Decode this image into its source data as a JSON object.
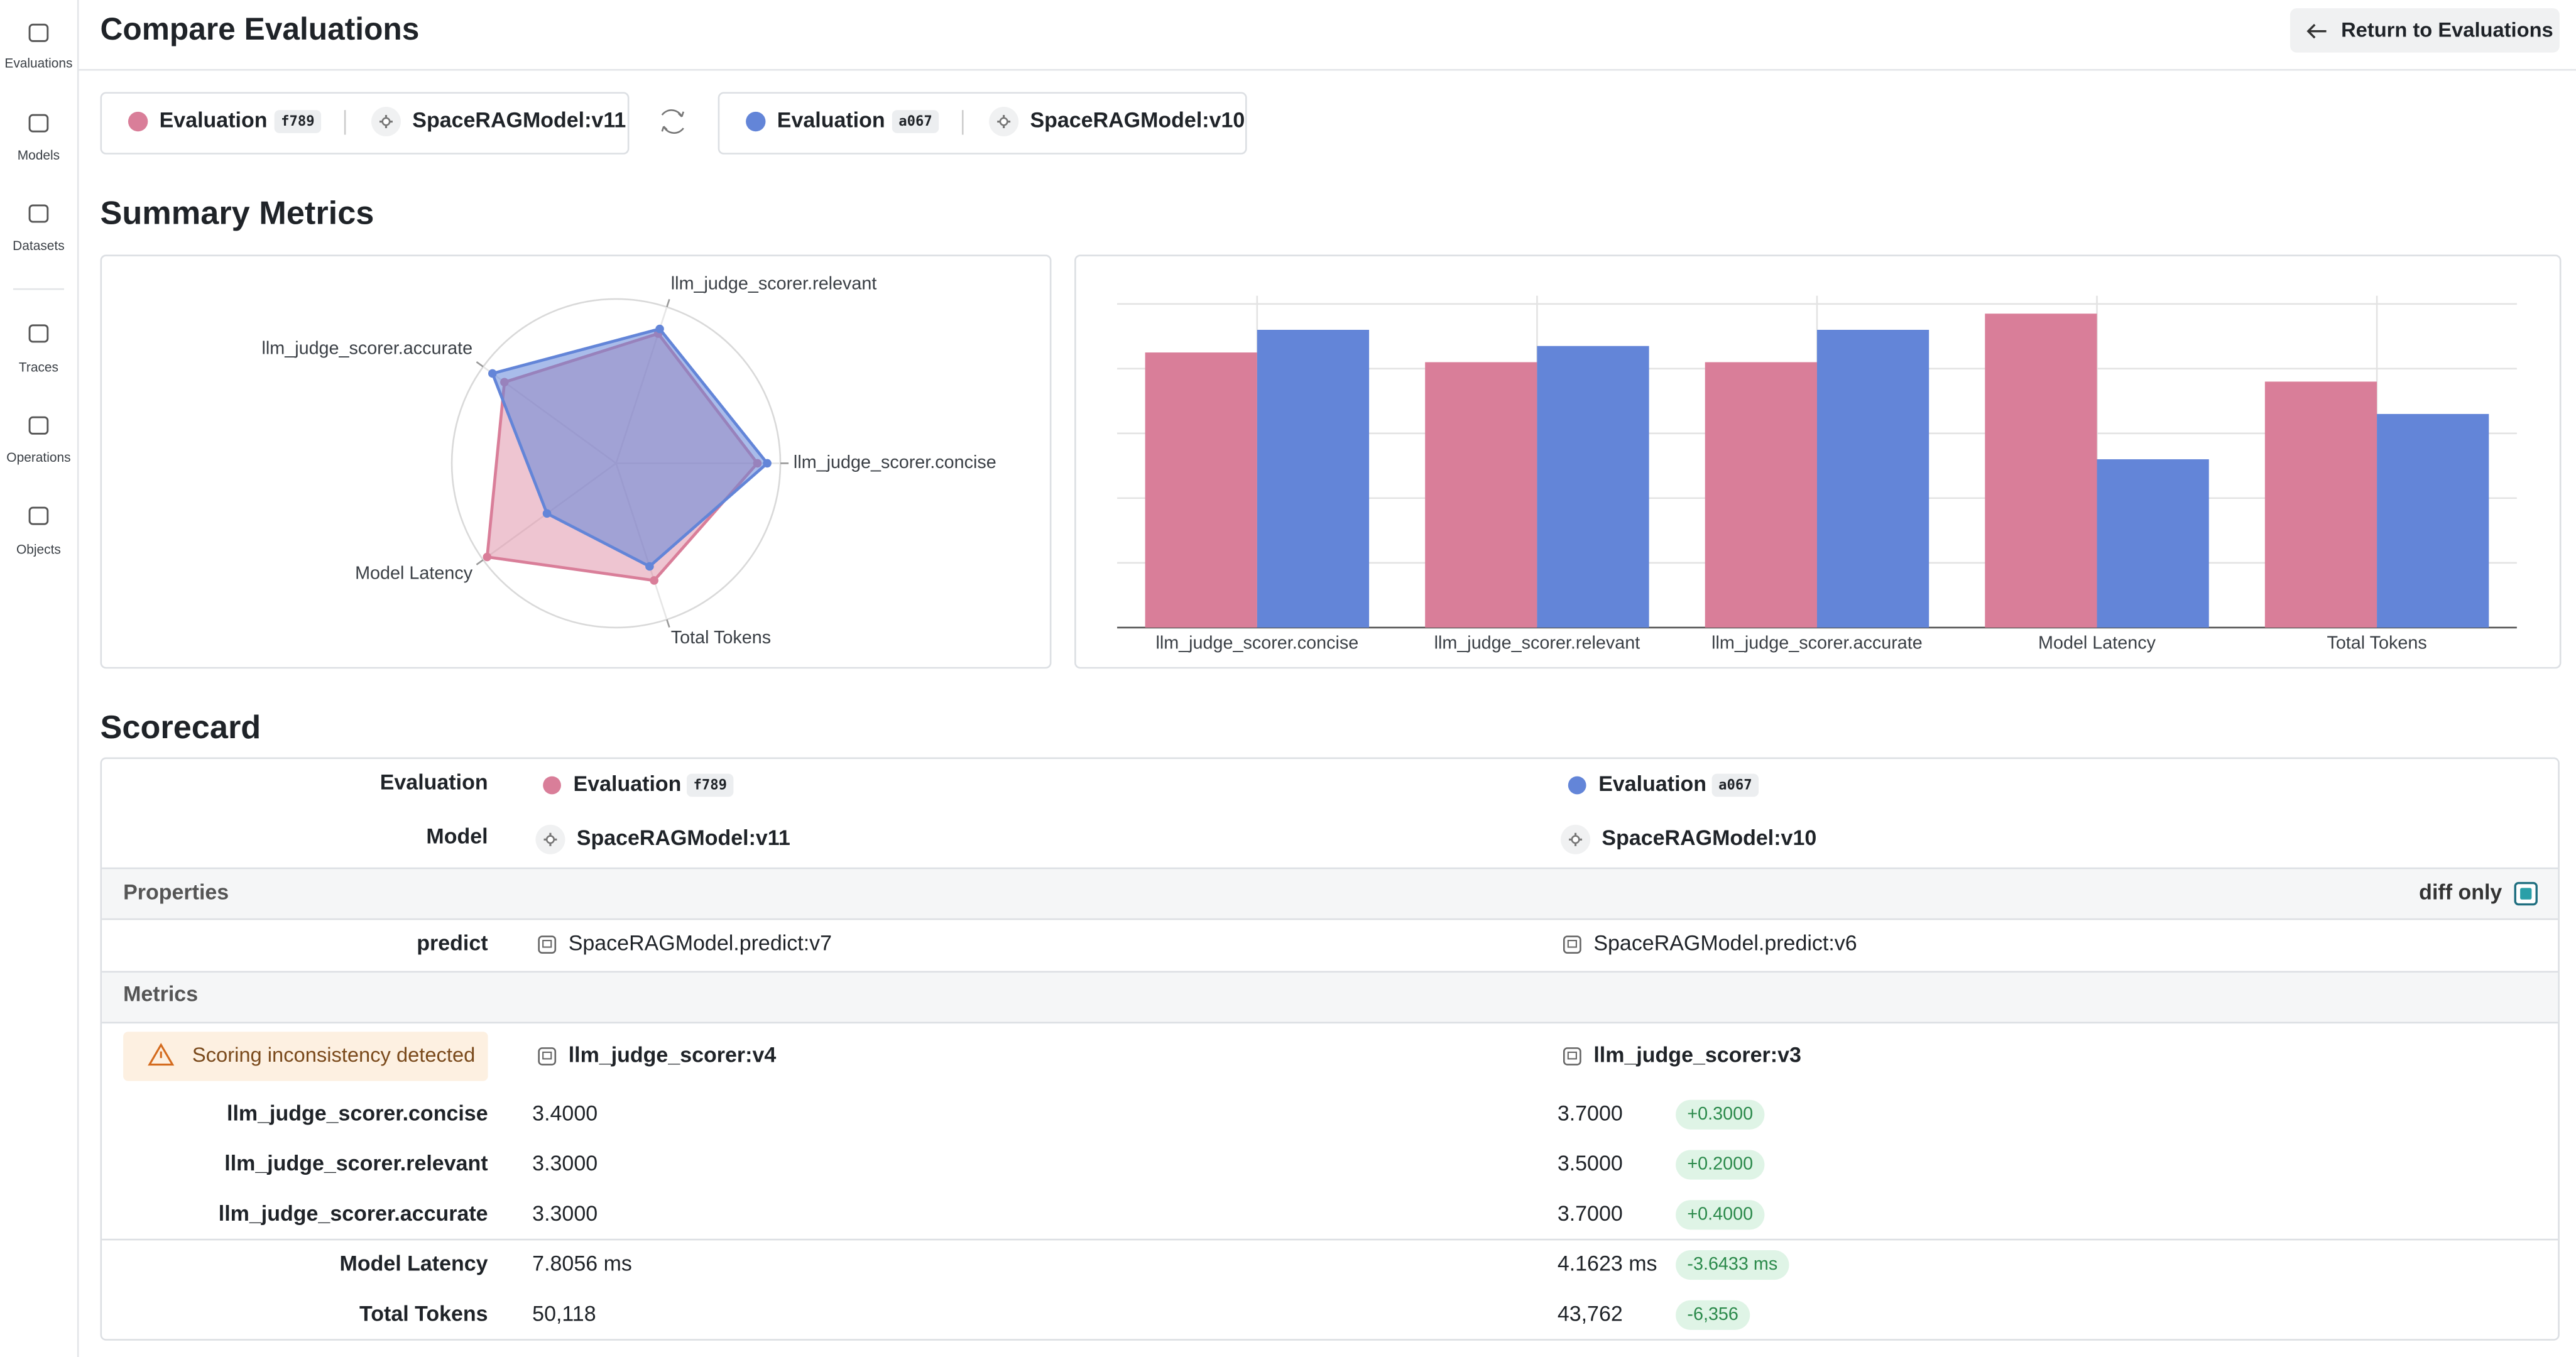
{
  "sidebar": {
    "items": [
      "Evaluations",
      "Models",
      "Datasets",
      "Traces",
      "Operations",
      "Objects"
    ]
  },
  "header": {
    "title": "Compare Evaluations",
    "return_button": "Return to Evaluations"
  },
  "evaluations": [
    {
      "label": "Evaluation",
      "id": "f789",
      "model": "SpaceRAGModel:v11",
      "color": "#d97e99"
    },
    {
      "label": "Evaluation",
      "id": "a067",
      "model": "SpaceRAGModel:v10",
      "color": "#6385d8"
    }
  ],
  "summary_title": "Summary Metrics",
  "chart_data": [
    {
      "type": "radar",
      "categories": [
        "llm_judge_scorer.relevant",
        "llm_judge_scorer.concise",
        "Total Tokens",
        "Model Latency",
        "llm_judge_scorer.accurate"
      ],
      "rlim": [
        0,
        1
      ],
      "series": [
        {
          "color": "#d97e99",
          "values": [
            0.83,
            0.86,
            0.75,
            0.97,
            0.84
          ]
        },
        {
          "color": "#6385d8",
          "values": [
            0.86,
            0.92,
            0.66,
            0.52,
            0.93
          ]
        }
      ]
    },
    {
      "type": "bar",
      "categories": [
        "llm_judge_scorer.concise",
        "llm_judge_scorer.relevant",
        "llm_judge_scorer.accurate",
        "Model Latency",
        "Total Tokens"
      ],
      "ylim": [
        0,
        1
      ],
      "yticks": [
        0,
        0.2,
        0.4,
        0.6,
        0.8,
        1
      ],
      "grid": true,
      "series": [
        {
          "color": "#d97e99",
          "values": [
            0.85,
            0.82,
            0.82,
            0.97,
            0.76
          ]
        },
        {
          "color": "#6385d8",
          "values": [
            0.92,
            0.87,
            0.92,
            0.52,
            0.66
          ]
        }
      ]
    }
  ],
  "scorecard": {
    "title": "Scorecard",
    "row_labels": {
      "evaluation": "Evaluation",
      "model": "Model"
    },
    "properties": {
      "title": "Properties",
      "diff_only": "diff only",
      "rows": [
        {
          "name": "predict",
          "values": [
            "SpaceRAGModel.predict:v7",
            "SpaceRAGModel.predict:v6"
          ]
        }
      ]
    },
    "metrics": {
      "title": "Metrics",
      "warning": "Scoring inconsistency detected",
      "scorers": [
        "llm_judge_scorer:v4",
        "llm_judge_scorer:v3"
      ],
      "rows": [
        {
          "name": "llm_judge_scorer.concise",
          "values": [
            "3.4000",
            "3.7000"
          ],
          "diff": "+0.3000"
        },
        {
          "name": "llm_judge_scorer.relevant",
          "values": [
            "3.3000",
            "3.5000"
          ],
          "diff": "+0.2000"
        },
        {
          "name": "llm_judge_scorer.accurate",
          "values": [
            "3.3000",
            "3.7000"
          ],
          "diff": "+0.4000"
        },
        {
          "name": "Model Latency",
          "values": [
            "7.8056 ms",
            "4.1623 ms"
          ],
          "diff": "-3.6433 ms"
        },
        {
          "name": "Total Tokens",
          "values": [
            "50,118",
            "43,762"
          ],
          "diff": "-6,356"
        }
      ]
    }
  }
}
